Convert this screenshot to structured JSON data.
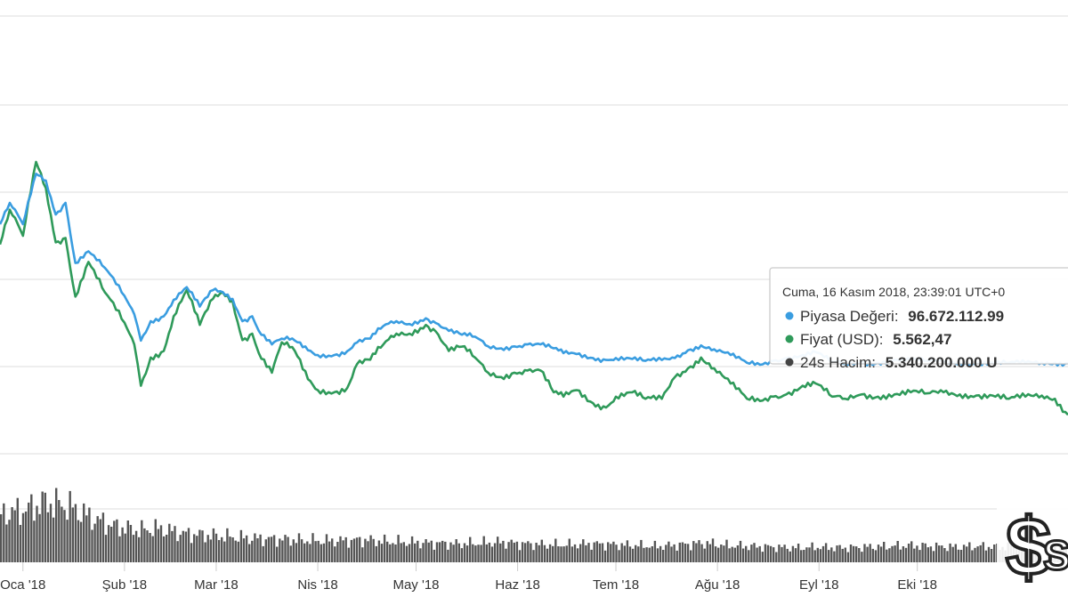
{
  "chart_data": {
    "type": "line",
    "subtype": "price-chart-with-volume",
    "title": "",
    "xlabel": "",
    "ylabel": "",
    "grid": true,
    "x_tick_labels": [
      "Oca '18",
      "Şub '18",
      "Mar '18",
      "Nis '18",
      "May '18",
      "Haz '18",
      "Tem '18",
      "Ağu '18",
      "Eyl '18",
      "Eki '18"
    ],
    "x_range": [
      "2017-12-25",
      "2018-11-16"
    ],
    "series": [
      {
        "name": "Piyasa Değeri",
        "color": "#3a9de0",
        "kind": "line",
        "points": [
          [
            "2017-12-25",
            240
          ],
          [
            "2017-12-28",
            262
          ],
          [
            "2018-01-01",
            240
          ],
          [
            "2018-01-05",
            292
          ],
          [
            "2018-01-08",
            285
          ],
          [
            "2018-01-11",
            250
          ],
          [
            "2018-01-14",
            262
          ],
          [
            "2018-01-17",
            200
          ],
          [
            "2018-01-21",
            212
          ],
          [
            "2018-01-26",
            195
          ],
          [
            "2018-02-01",
            166
          ],
          [
            "2018-02-04",
            147
          ],
          [
            "2018-02-06",
            120
          ],
          [
            "2018-02-09",
            140
          ],
          [
            "2018-02-13",
            145
          ],
          [
            "2018-02-16",
            162
          ],
          [
            "2018-02-20",
            175
          ],
          [
            "2018-02-24",
            155
          ],
          [
            "2018-02-28",
            172
          ],
          [
            "2018-03-03",
            170
          ],
          [
            "2018-03-06",
            163
          ],
          [
            "2018-03-09",
            140
          ],
          [
            "2018-03-12",
            145
          ],
          [
            "2018-03-14",
            130
          ],
          [
            "2018-03-18",
            116
          ],
          [
            "2018-03-21",
            122
          ],
          [
            "2018-03-25",
            120
          ],
          [
            "2018-03-29",
            110
          ],
          [
            "2018-04-01",
            105
          ],
          [
            "2018-04-06",
            105
          ],
          [
            "2018-04-10",
            109
          ],
          [
            "2018-04-13",
            118
          ],
          [
            "2018-04-17",
            122
          ],
          [
            "2018-04-21",
            135
          ],
          [
            "2018-04-25",
            140
          ],
          [
            "2018-04-29",
            137
          ],
          [
            "2018-05-04",
            143
          ],
          [
            "2018-05-07",
            138
          ],
          [
            "2018-05-11",
            130
          ],
          [
            "2018-05-15",
            126
          ],
          [
            "2018-05-19",
            124
          ],
          [
            "2018-05-23",
            114
          ],
          [
            "2018-05-27",
            112
          ],
          [
            "2018-05-31",
            114
          ],
          [
            "2018-06-04",
            116
          ],
          [
            "2018-06-08",
            116
          ],
          [
            "2018-06-12",
            112
          ],
          [
            "2018-06-15",
            107
          ],
          [
            "2018-06-19",
            106
          ],
          [
            "2018-06-24",
            102
          ],
          [
            "2018-06-28",
            100
          ],
          [
            "2018-07-01",
            102
          ],
          [
            "2018-07-06",
            101
          ],
          [
            "2018-07-10",
            99
          ],
          [
            "2018-07-15",
            100
          ],
          [
            "2018-07-19",
            102
          ],
          [
            "2018-07-23",
            110
          ],
          [
            "2018-07-27",
            115
          ],
          [
            "2018-07-31",
            111
          ],
          [
            "2018-08-05",
            105
          ],
          [
            "2018-08-10",
            97
          ],
          [
            "2018-08-14",
            95
          ],
          [
            "2018-08-18",
            99
          ],
          [
            "2018-08-22",
            102
          ],
          [
            "2018-08-27",
            105
          ],
          [
            "2018-08-31",
            108
          ],
          [
            "2018-09-05",
            98
          ],
          [
            "2018-09-09",
            96
          ],
          [
            "2018-09-14",
            97
          ],
          [
            "2018-09-19",
            97
          ],
          [
            "2018-09-24",
            100
          ],
          [
            "2018-09-29",
            100
          ],
          [
            "2018-10-04",
            99
          ],
          [
            "2018-10-09",
            98
          ],
          [
            "2018-10-14",
            97
          ],
          [
            "2018-10-19",
            97
          ],
          [
            "2018-10-24",
            97
          ],
          [
            "2018-10-29",
            97
          ],
          [
            "2018-11-03",
            97
          ],
          [
            "2018-11-08",
            97
          ],
          [
            "2018-11-12",
            97
          ],
          [
            "2018-11-16",
            96.67
          ]
        ]
      },
      {
        "name": "Fiyat (USD)",
        "color": "#2f9a5a",
        "kind": "line",
        "points": [
          [
            "2017-12-25",
            13400
          ],
          [
            "2017-12-28",
            15000
          ],
          [
            "2018-01-01",
            13800
          ],
          [
            "2018-01-05",
            17200
          ],
          [
            "2018-01-08",
            16000
          ],
          [
            "2018-01-11",
            13500
          ],
          [
            "2018-01-14",
            13700
          ],
          [
            "2018-01-17",
            11000
          ],
          [
            "2018-01-21",
            12600
          ],
          [
            "2018-01-26",
            11200
          ],
          [
            "2018-02-01",
            9800
          ],
          [
            "2018-02-04",
            8800
          ],
          [
            "2018-02-06",
            6900
          ],
          [
            "2018-02-09",
            8200
          ],
          [
            "2018-02-13",
            8500
          ],
          [
            "2018-02-16",
            10100
          ],
          [
            "2018-02-20",
            11300
          ],
          [
            "2018-02-24",
            9700
          ],
          [
            "2018-02-28",
            10900
          ],
          [
            "2018-03-03",
            11200
          ],
          [
            "2018-03-06",
            10800
          ],
          [
            "2018-03-09",
            9000
          ],
          [
            "2018-03-12",
            9300
          ],
          [
            "2018-03-14",
            8400
          ],
          [
            "2018-03-18",
            7500
          ],
          [
            "2018-03-21",
            8900
          ],
          [
            "2018-03-25",
            8500
          ],
          [
            "2018-03-29",
            7200
          ],
          [
            "2018-04-01",
            6700
          ],
          [
            "2018-04-06",
            6600
          ],
          [
            "2018-04-10",
            6800
          ],
          [
            "2018-04-13",
            7900
          ],
          [
            "2018-04-17",
            8100
          ],
          [
            "2018-04-21",
            8800
          ],
          [
            "2018-04-25",
            9300
          ],
          [
            "2018-04-29",
            9300
          ],
          [
            "2018-05-04",
            9700
          ],
          [
            "2018-05-07",
            9400
          ],
          [
            "2018-05-11",
            8500
          ],
          [
            "2018-05-15",
            8700
          ],
          [
            "2018-05-19",
            8200
          ],
          [
            "2018-05-23",
            7500
          ],
          [
            "2018-05-27",
            7300
          ],
          [
            "2018-05-31",
            7500
          ],
          [
            "2018-06-04",
            7600
          ],
          [
            "2018-06-08",
            7600
          ],
          [
            "2018-06-12",
            6600
          ],
          [
            "2018-06-15",
            6400
          ],
          [
            "2018-06-19",
            6700
          ],
          [
            "2018-06-24",
            6100
          ],
          [
            "2018-06-28",
            5900
          ],
          [
            "2018-07-01",
            6400
          ],
          [
            "2018-07-06",
            6600
          ],
          [
            "2018-07-10",
            6300
          ],
          [
            "2018-07-15",
            6300
          ],
          [
            "2018-07-19",
            7300
          ],
          [
            "2018-07-23",
            7700
          ],
          [
            "2018-07-27",
            8200
          ],
          [
            "2018-07-31",
            7700
          ],
          [
            "2018-08-05",
            7000
          ],
          [
            "2018-08-10",
            6300
          ],
          [
            "2018-08-14",
            6200
          ],
          [
            "2018-08-18",
            6400
          ],
          [
            "2018-08-22",
            6500
          ],
          [
            "2018-08-27",
            6900
          ],
          [
            "2018-08-31",
            7000
          ],
          [
            "2018-09-05",
            6400
          ],
          [
            "2018-09-09",
            6300
          ],
          [
            "2018-09-14",
            6500
          ],
          [
            "2018-09-19",
            6400
          ],
          [
            "2018-09-24",
            6500
          ],
          [
            "2018-09-29",
            6600
          ],
          [
            "2018-10-04",
            6550
          ],
          [
            "2018-10-09",
            6600
          ],
          [
            "2018-10-14",
            6500
          ],
          [
            "2018-10-19",
            6450
          ],
          [
            "2018-10-24",
            6450
          ],
          [
            "2018-10-29",
            6300
          ],
          [
            "2018-11-03",
            6400
          ],
          [
            "2018-11-08",
            6450
          ],
          [
            "2018-11-12",
            6300
          ],
          [
            "2018-11-16",
            5562.47
          ]
        ]
      },
      {
        "name": "24s Hacim",
        "color": "#555555",
        "kind": "bar",
        "values_relative": [
          0.6,
          0.65,
          0.75,
          0.7,
          0.55,
          0.45,
          0.4,
          0.42,
          0.36,
          0.34,
          0.32,
          0.3,
          0.29,
          0.28,
          0.27,
          0.27,
          0.28,
          0.26,
          0.25,
          0.24,
          0.23,
          0.24,
          0.25,
          0.23,
          0.22,
          0.22,
          0.23,
          0.22,
          0.21,
          0.2,
          0.22,
          0.24,
          0.21,
          0.2,
          0.19,
          0.18,
          0.19,
          0.18,
          0.19,
          0.2,
          0.21,
          0.2,
          0.19,
          0.2,
          0.19,
          0.22,
          0.21,
          0.2
        ]
      }
    ],
    "tooltip": {
      "date": "Cuma, 16 Kasım 2018, 23:39:01 UTC+0",
      "rows": [
        {
          "label": "Piyasa Değeri:",
          "value": "96.672.112.99",
          "color": "#3a9de0"
        },
        {
          "label": "Fiyat (USD):",
          "value": "5.562,47",
          "color": "#2f9a5a"
        },
        {
          "label": "24s Hacim:",
          "value": "5.340.200.000 U",
          "color": "#444444"
        }
      ]
    },
    "watermark_icon": "dollar-sign-coin-logo"
  }
}
